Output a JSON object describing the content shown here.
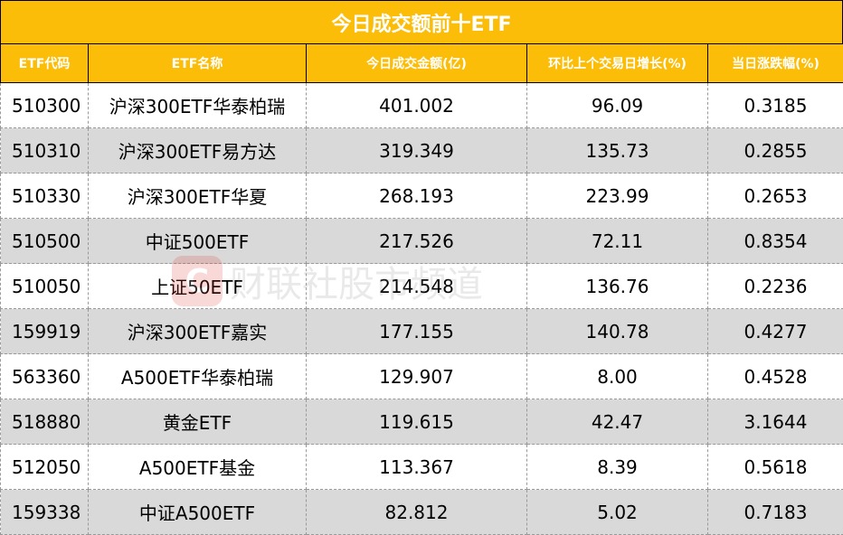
{
  "title": "今日成交额前十ETF",
  "headers": [
    "ETF代码",
    "ETF名称",
    "今日成交金额(亿)",
    "环比上个交易日增长(%)",
    "当日涨跌幅(%)"
  ],
  "rows": [
    [
      "510300",
      "沪深300ETF华泰柏瑞",
      "401.002",
      "96.09",
      "0.3185"
    ],
    [
      "510310",
      "沪深300ETF易方达",
      "319.349",
      "135.73",
      "0.2855"
    ],
    [
      "510330",
      "沪深300ETF华夏",
      "268.193",
      "223.99",
      "0.2653"
    ],
    [
      "510500",
      "中证500ETF",
      "217.526",
      "72.11",
      "0.8354"
    ],
    [
      "510050",
      "上证50ETF",
      "214.548",
      "136.76",
      "0.2236"
    ],
    [
      "159919",
      "沪深300ETF嘉实",
      "177.155",
      "140.78",
      "0.4277"
    ],
    [
      "563360",
      "A500ETF华泰柏瑞",
      "129.907",
      "8.00",
      "0.4528"
    ],
    [
      "518880",
      "黄金ETF",
      "119.615",
      "42.47",
      "3.1644"
    ],
    [
      "512050",
      "A500ETF基金",
      "113.367",
      "8.39",
      "0.5618"
    ],
    [
      "159338",
      "中证A500ETF",
      "82.812",
      "5.02",
      "0.7183"
    ]
  ],
  "watermark": "财联社股市频道",
  "colors": {
    "header": "#fbbd08",
    "stripe": "#d9d9d9"
  }
}
